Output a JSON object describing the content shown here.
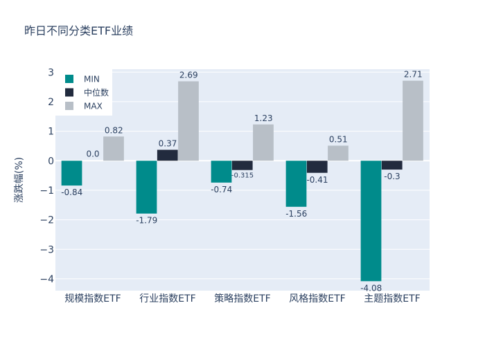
{
  "chart_data": {
    "type": "bar",
    "title": "昨日不同分类ETF业绩",
    "xlabel": "",
    "ylabel": "涨跌幅(%)",
    "ylim": [
      -4.4,
      3.1
    ],
    "yticks": [
      3,
      2,
      1,
      0,
      -1,
      -2,
      -3,
      -4
    ],
    "ytick_labels": [
      "3",
      "2",
      "1",
      "0",
      "−1",
      "−2",
      "−3",
      "−4"
    ],
    "categories": [
      "规模指数ETF",
      "行业指数ETF",
      "策略指数ETF",
      "风格指数ETF",
      "主题指数ETF"
    ],
    "series": [
      {
        "name": "MIN",
        "color": "#008b8b",
        "values": [
          -0.84,
          -1.79,
          -0.74,
          -1.56,
          -4.08
        ],
        "labels": [
          "-0.84",
          "-1.79",
          "-0.74",
          "-1.56",
          "-4.08"
        ]
      },
      {
        "name": "中位数",
        "color": "#222b3e",
        "values": [
          0.0,
          0.37,
          -0.315,
          -0.41,
          -0.3
        ],
        "labels": [
          "0.0",
          "0.37",
          "-0.315",
          "-0.41",
          "-0.3"
        ]
      },
      {
        "name": "MAX",
        "color": "#b8bfc7",
        "values": [
          0.82,
          2.69,
          1.23,
          0.51,
          2.71
        ],
        "labels": [
          "0.82",
          "2.69",
          "1.23",
          "0.51",
          "2.71"
        ]
      }
    ],
    "legend_position": "top-left",
    "grid": true,
    "colors": {
      "plot_bg": "#e5ecf6",
      "grid": "#ffffff",
      "text": "#2a3f5f"
    }
  }
}
